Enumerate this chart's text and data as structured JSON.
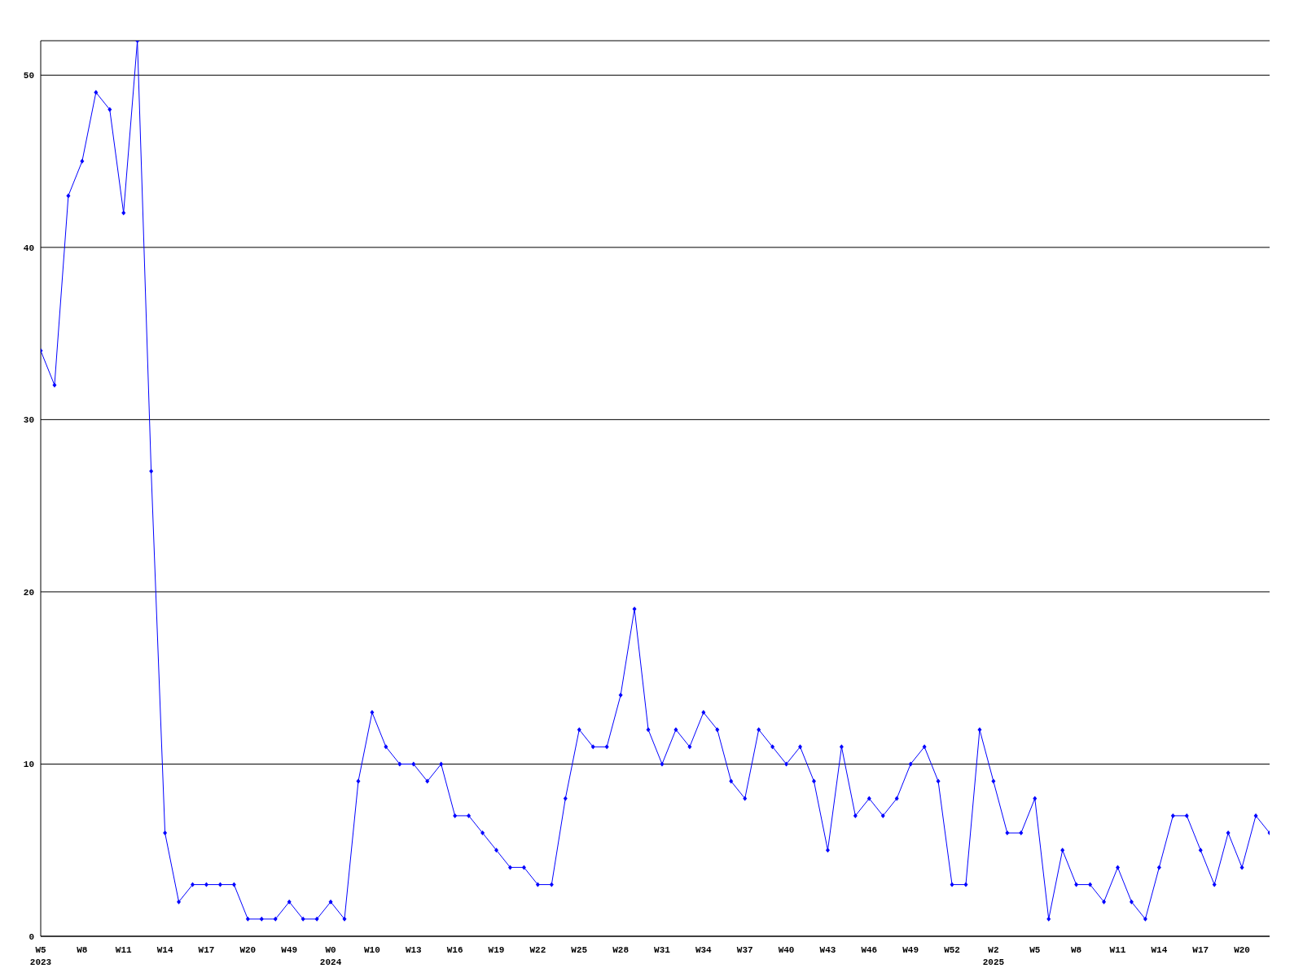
{
  "chart_data": {
    "type": "line",
    "categories": [
      "W5\n2023",
      null,
      null,
      "W8",
      null,
      null,
      "W11",
      null,
      null,
      "W14",
      null,
      null,
      "W17",
      null,
      null,
      "W20",
      null,
      null,
      "W49",
      null,
      null,
      "W0\n2024",
      null,
      null,
      "W10",
      null,
      null,
      "W13",
      null,
      null,
      "W16",
      null,
      null,
      "W19",
      null,
      null,
      "W22",
      null,
      null,
      "W25",
      null,
      null,
      "W28",
      null,
      null,
      "W31",
      null,
      null,
      "W34",
      null,
      null,
      "W37",
      null,
      null,
      "W40",
      null,
      null,
      "W43",
      null,
      null,
      "W46",
      null,
      null,
      "W49",
      null,
      null,
      "W52",
      null,
      null,
      "W2\n2025",
      null,
      null,
      "W5",
      null,
      null,
      "W8",
      null,
      null,
      "W11",
      null,
      null,
      "W14",
      null,
      null,
      "W17",
      null,
      null,
      "W20",
      null,
      null
    ],
    "series": [
      {
        "color": "#0000ff",
        "values": [
          34,
          32,
          43,
          45,
          49,
          48,
          42,
          52,
          27,
          6,
          2,
          3,
          3,
          3,
          3,
          1,
          1,
          1,
          2,
          1,
          1,
          2,
          1,
          9,
          13,
          11,
          10,
          10,
          9,
          10,
          7,
          7,
          6,
          5,
          4,
          4,
          3,
          3,
          8,
          12,
          11,
          11,
          14,
          19,
          12,
          10,
          12,
          11,
          13,
          12,
          9,
          8,
          12,
          11,
          10,
          11,
          9,
          5,
          11,
          7,
          8,
          7,
          8,
          10,
          11,
          9,
          3,
          3,
          12,
          9,
          6,
          6,
          8,
          1,
          5,
          3,
          3,
          2,
          4,
          2,
          1,
          4,
          7,
          7,
          5,
          3,
          6,
          4,
          7,
          6
        ]
      }
    ],
    "ylim": [
      0,
      52
    ],
    "yticks": [
      0,
      10,
      20,
      30,
      40,
      50
    ],
    "grid": "y",
    "marker": "diamond",
    "line_style": "solid",
    "legend": false
  }
}
